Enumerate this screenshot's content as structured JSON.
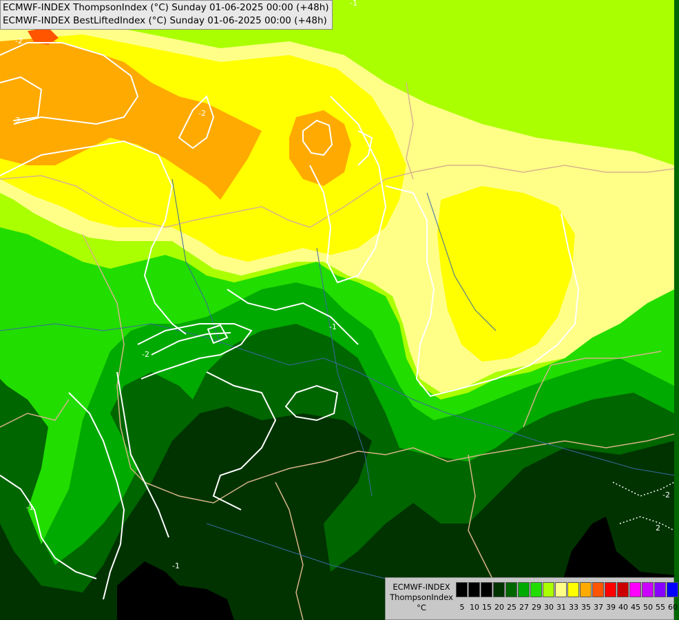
{
  "titles": [
    "ECMWF-INDEX ThompsonIndex (°C) Sunday 01-06-2025 00:00 (+48h)",
    "ECMWF-INDEX BestLiftedIndex (°C) Sunday 01-06-2025 00:00 (+48h)"
  ],
  "legend": {
    "line1": "ECMWF-INDEX",
    "line2": "ThompsonIndex",
    "unit": "°C",
    "classes": [
      {
        "label": "5",
        "color": "#000000"
      },
      {
        "label": "10",
        "color": "#000000"
      },
      {
        "label": "15",
        "color": "#000000"
      },
      {
        "label": "20",
        "color": "#003300"
      },
      {
        "label": "25",
        "color": "#006600"
      },
      {
        "label": "27",
        "color": "#00aa00"
      },
      {
        "label": "29",
        "color": "#22dd00"
      },
      {
        "label": "30",
        "color": "#aaff00"
      },
      {
        "label": "31",
        "color": "#ffff88"
      },
      {
        "label": "33",
        "color": "#ffff00"
      },
      {
        "label": "35",
        "color": "#ffaa00"
      },
      {
        "label": "37",
        "color": "#ff5500"
      },
      {
        "label": "39",
        "color": "#ff0000"
      },
      {
        "label": "40",
        "color": "#cc0000"
      },
      {
        "label": "45",
        "color": "#ff00ff"
      },
      {
        "label": "50",
        "color": "#cc00ff"
      },
      {
        "label": "55",
        "color": "#8800ff"
      },
      {
        "label": "60",
        "color": "#0000ff"
      }
    ]
  },
  "contour_labels": [
    "-2",
    "-3",
    "-2",
    "-2",
    "-1",
    "-1",
    "-1",
    "-1",
    "-2",
    "2"
  ],
  "colors": {
    "border": "#d8b48a",
    "river": "#3a6aa0",
    "contour": "#ffffff"
  }
}
